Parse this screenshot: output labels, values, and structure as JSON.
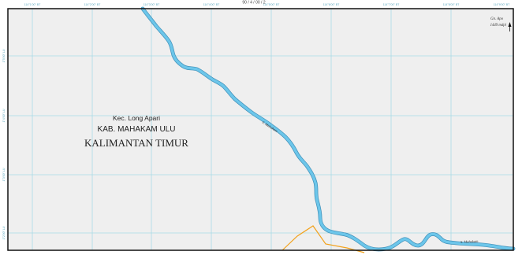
{
  "map": {
    "sheet_code": "90 / 4 / 00 / 2",
    "top_ticks": [
      "114°1'00\" BT",
      "114°2'00\" BT",
      "114°3'00\" BT",
      "114°4'00\" BT",
      "114°5'00\" BT",
      "114°6'00\" BT",
      "114°7'00\" BT",
      "114°8'00\" BT",
      "114°9'00\" BT"
    ],
    "left_ticks": [
      "1°5'00\" LU",
      "1°4'00\" LU",
      "1°3'00\" LU",
      "1°2'00\" LU"
    ],
    "labels": {
      "district": "Kec. Long Apari",
      "regency": "KAB. MAHAKAM ULU",
      "province": "KALIMANTAN TIMUR",
      "river_upper": "S. Mahakam",
      "river_lower": "S. Mahakam",
      "peak_name": "Gn. Apo",
      "peak_elevation": "1449 mdpl"
    },
    "colors": {
      "background": "#efefef",
      "grid": "#a9dbe6",
      "river": "#6cc6ea",
      "river_edge": "#3f8fb8",
      "boundary": "#f2a21c",
      "frame": "#111111"
    }
  }
}
